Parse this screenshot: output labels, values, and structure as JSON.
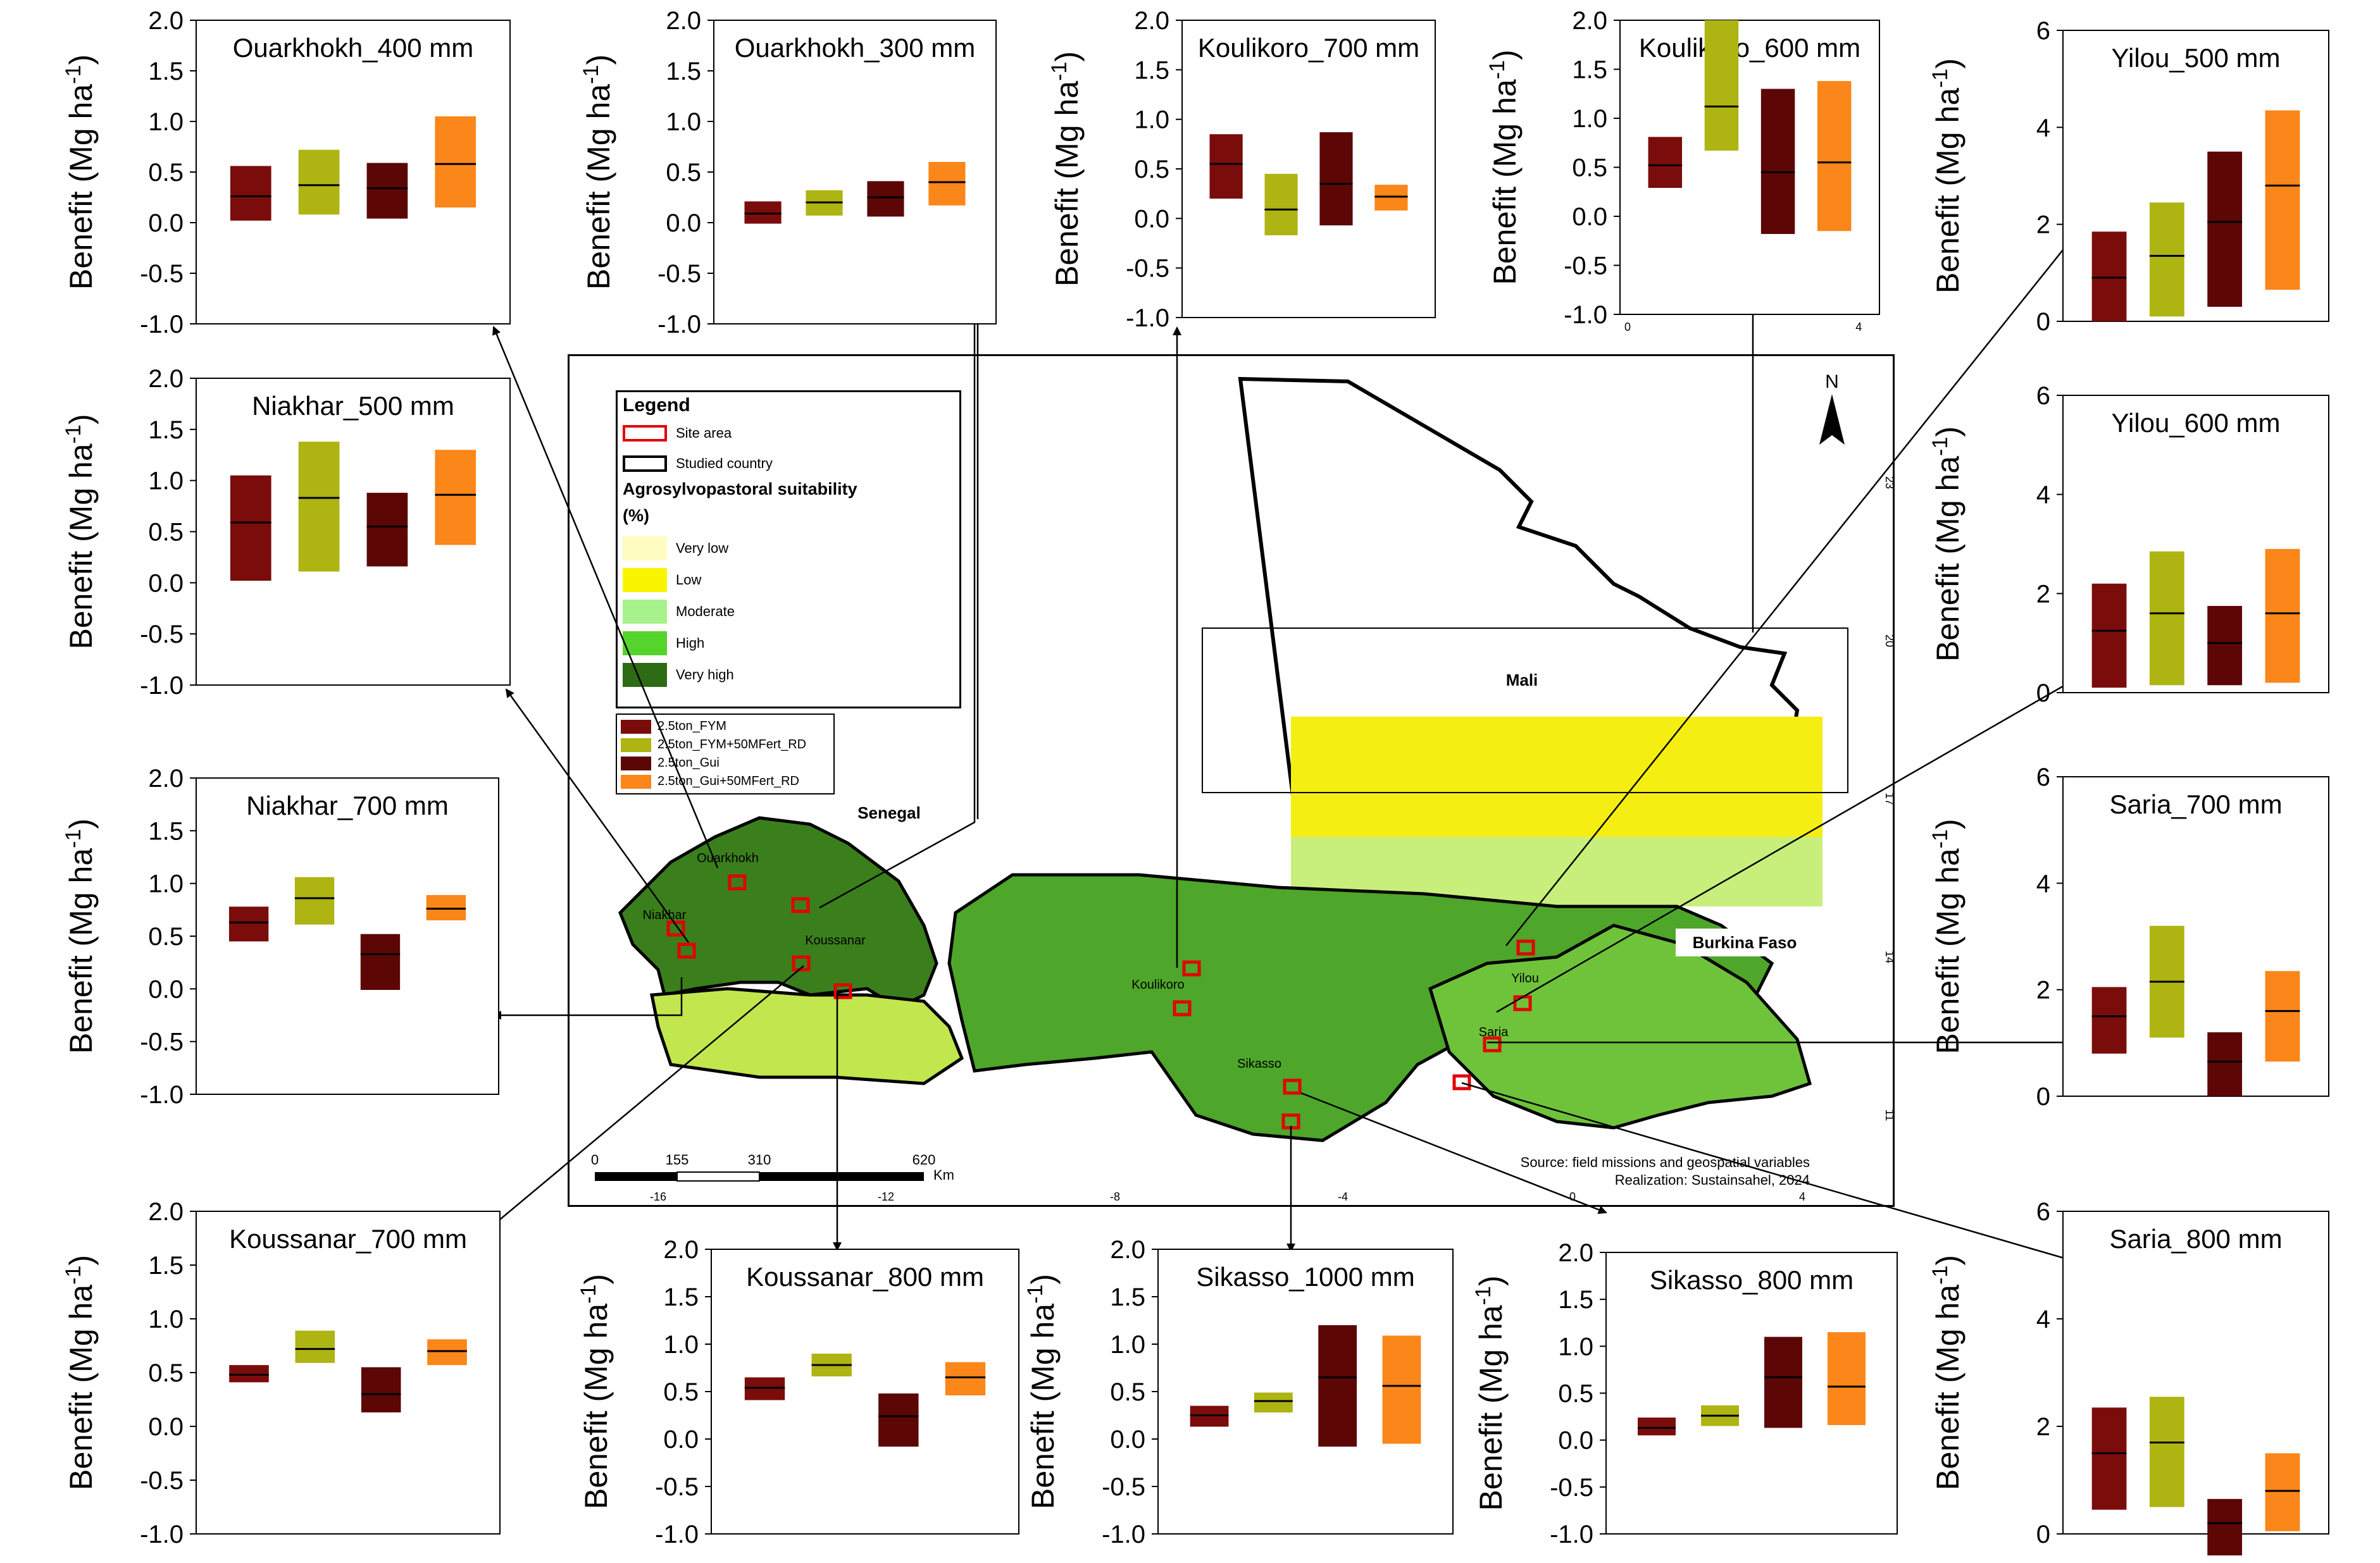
{
  "map": {
    "legend_title": "Legend",
    "legend_site": "Site area",
    "legend_country": "Studied country",
    "suitability_title": "Agrosylvopastoral suitability",
    "suitability_unit": "(%)",
    "classes": [
      {
        "label": "Very low",
        "color": "#fefcc0"
      },
      {
        "label": "Low",
        "color": "#f9f500"
      },
      {
        "label": "Moderate",
        "color": "#a7f28a"
      },
      {
        "label": "High",
        "color": "#55d42b"
      },
      {
        "label": "Very high",
        "color": "#2d6b14"
      }
    ],
    "countries": [
      "Senegal",
      "Mali",
      "Burkina Faso"
    ],
    "sites": [
      "Ouarkhokh",
      "Niakhar",
      "Koussanar",
      "Koulikoro",
      "Sikasso",
      "Yilou",
      "Saria"
    ],
    "north": "N",
    "scale_labels": [
      "0",
      "155",
      "310",
      "620"
    ],
    "scale_unit": "Km",
    "source": "Source: field missions and geospatial variables",
    "realization": "Realization: Sustainsahel, 2024",
    "lat_ticks": [
      "23",
      "20",
      "17",
      "14",
      "11"
    ],
    "lon_ticks_bottom": [
      "-16",
      "-12",
      "-8",
      "-4",
      "0",
      "4"
    ],
    "lon_ticks_top": [
      "0",
      "4"
    ]
  },
  "treatments": [
    {
      "label": "2.5ton_FYM",
      "color": "#7b0c0c"
    },
    {
      "label": "2.5ton_FYM+50MFert_RD",
      "color": "#aeb412"
    },
    {
      "label": "2.5ton_Gui",
      "color": "#5c0606"
    },
    {
      "label": "2.5ton_Gui+50MFert_RD",
      "color": "#fb8619"
    }
  ],
  "chart_data": [
    {
      "type": "box",
      "title": "Ouarkhokh_400 mm",
      "ylabel": "Benefit (Mg ha-1)",
      "ylim": [
        -1.0,
        2.0
      ],
      "yticks": [
        "2.0",
        "1.5",
        "1.0",
        "0.5",
        "0.0",
        "-0.5",
        "-1.0"
      ],
      "series": [
        {
          "low": 0.02,
          "median": 0.26,
          "high": 0.56
        },
        {
          "low": 0.08,
          "median": 0.37,
          "high": 0.72
        },
        {
          "low": 0.04,
          "median": 0.34,
          "high": 0.59
        },
        {
          "low": 0.15,
          "median": 0.58,
          "high": 1.05
        }
      ]
    },
    {
      "type": "box",
      "title": "Ouarkhokh_300 mm",
      "ylabel": "Benefit (Mg ha-1)",
      "ylim": [
        -1.0,
        2.0
      ],
      "yticks": [
        "2.0",
        "1.5",
        "1.0",
        "0.5",
        "0.0",
        "-0.5",
        "-1.0"
      ],
      "series": [
        {
          "low": -0.01,
          "median": 0.09,
          "high": 0.21
        },
        {
          "low": 0.07,
          "median": 0.2,
          "high": 0.32
        },
        {
          "low": 0.06,
          "median": 0.25,
          "high": 0.41
        },
        {
          "low": 0.17,
          "median": 0.4,
          "high": 0.6
        }
      ]
    },
    {
      "type": "box",
      "title": "Koulikoro_700 mm",
      "ylabel": "Benefit (Mg ha-1)",
      "ylim": [
        -1.0,
        2.0
      ],
      "yticks": [
        "2.0",
        "1.5",
        "1.0",
        "0.5",
        "0.0",
        "-0.5",
        "-1.0"
      ],
      "series": [
        {
          "low": 0.2,
          "median": 0.55,
          "high": 0.85
        },
        {
          "low": -0.17,
          "median": 0.09,
          "high": 0.45
        },
        {
          "low": -0.07,
          "median": 0.35,
          "high": 0.87
        },
        {
          "low": 0.08,
          "median": 0.22,
          "high": 0.34
        }
      ]
    },
    {
      "type": "box",
      "title": "Koulikoro_600 mm",
      "ylabel": "Benefit (Mg ha-1)",
      "ylim": [
        -1.0,
        2.0
      ],
      "yticks": [
        "2.0",
        "1.5",
        "1.0",
        "0.5",
        "0.0",
        "-0.5",
        "-1.0"
      ],
      "xticks": [
        "0",
        "4"
      ],
      "series": [
        {
          "low": 0.29,
          "median": 0.52,
          "high": 0.81
        },
        {
          "low": 0.67,
          "median": 1.12,
          "high": 2.0
        },
        {
          "low": -0.18,
          "median": 0.45,
          "high": 1.3
        },
        {
          "low": -0.15,
          "median": 0.55,
          "high": 1.38
        }
      ]
    },
    {
      "type": "box",
      "title": "Yilou_500 mm",
      "ylabel": "Benefit (Mg ha-1)",
      "ylim": [
        0,
        6
      ],
      "yticks": [
        "6",
        "4",
        "2",
        "0"
      ],
      "series": [
        {
          "low": 0.0,
          "median": 0.9,
          "high": 1.85
        },
        {
          "low": 0.1,
          "median": 1.35,
          "high": 2.45
        },
        {
          "low": 0.3,
          "median": 2.05,
          "high": 3.5
        },
        {
          "low": 0.65,
          "median": 2.8,
          "high": 4.35
        }
      ]
    },
    {
      "type": "box",
      "title": "Niakhar_500 mm",
      "ylabel": "Benefit (Mg ha-1)",
      "ylim": [
        -1.0,
        2.0
      ],
      "yticks": [
        "2.0",
        "1.5",
        "1.0",
        "0.5",
        "0.0",
        "-0.5",
        "-1.0"
      ],
      "series": [
        {
          "low": 0.02,
          "median": 0.59,
          "high": 1.05
        },
        {
          "low": 0.11,
          "median": 0.83,
          "high": 1.38
        },
        {
          "low": 0.16,
          "median": 0.55,
          "high": 0.88
        },
        {
          "low": 0.37,
          "median": 0.86,
          "high": 1.3
        }
      ]
    },
    {
      "type": "box",
      "title": "Yilou_600 mm",
      "ylabel": "Benefit (Mg ha-1)",
      "ylim": [
        0,
        6
      ],
      "yticks": [
        "6",
        "4",
        "2",
        "0"
      ],
      "series": [
        {
          "low": 0.1,
          "median": 1.25,
          "high": 2.2
        },
        {
          "low": 0.15,
          "median": 1.6,
          "high": 2.85
        },
        {
          "low": 0.15,
          "median": 1.0,
          "high": 1.75
        },
        {
          "low": 0.2,
          "median": 1.6,
          "high": 2.9
        }
      ]
    },
    {
      "type": "box",
      "title": "Niakhar_700 mm",
      "ylabel": "Benefit (Mg ha-1)",
      "ylim": [
        -1.0,
        2.0
      ],
      "yticks": [
        "2.0",
        "1.5",
        "1.0",
        "0.5",
        "0.0",
        "-0.5",
        "-1.0"
      ],
      "series": [
        {
          "low": 0.45,
          "median": 0.63,
          "high": 0.78
        },
        {
          "low": 0.61,
          "median": 0.86,
          "high": 1.06
        },
        {
          "low": -0.01,
          "median": 0.33,
          "high": 0.52
        },
        {
          "low": 0.65,
          "median": 0.76,
          "high": 0.89
        }
      ]
    },
    {
      "type": "box",
      "title": "Saria_700 mm",
      "ylabel": "Benefit (Mg ha-1)",
      "ylim": [
        0,
        6
      ],
      "yticks": [
        "6",
        "4",
        "2",
        "0"
      ],
      "series": [
        {
          "low": 0.8,
          "median": 1.5,
          "high": 2.05
        },
        {
          "low": 1.1,
          "median": 2.15,
          "high": 3.2
        },
        {
          "low": 0.0,
          "median": 0.65,
          "high": 1.2
        },
        {
          "low": 0.65,
          "median": 1.6,
          "high": 2.35
        }
      ]
    },
    {
      "type": "box",
      "title": "Koussanar_700 mm",
      "ylabel": "Benefit (Mg ha-1)",
      "ylim": [
        -1.0,
        2.0
      ],
      "yticks": [
        "2.0",
        "1.5",
        "1.0",
        "0.5",
        "0.0",
        "-0.5",
        "-1.0"
      ],
      "series": [
        {
          "low": 0.41,
          "median": 0.48,
          "high": 0.57
        },
        {
          "low": 0.59,
          "median": 0.72,
          "high": 0.89
        },
        {
          "low": 0.13,
          "median": 0.3,
          "high": 0.55
        },
        {
          "low": 0.57,
          "median": 0.7,
          "high": 0.81
        }
      ]
    },
    {
      "type": "box",
      "title": "Koussanar_800 mm",
      "ylabel": "Benefit (Mg ha-1)",
      "ylim": [
        -1.0,
        2.0
      ],
      "yticks": [
        "2.0",
        "1.5",
        "1.0",
        "0.5",
        "0.0",
        "-0.5",
        "-1.0"
      ],
      "series": [
        {
          "low": 0.41,
          "median": 0.54,
          "high": 0.65
        },
        {
          "low": 0.66,
          "median": 0.78,
          "high": 0.9
        },
        {
          "low": -0.08,
          "median": 0.24,
          "high": 0.48
        },
        {
          "low": 0.46,
          "median": 0.65,
          "high": 0.81
        }
      ]
    },
    {
      "type": "box",
      "title": "Sikasso_1000 mm",
      "ylabel": "Benefit (Mg ha-1)",
      "ylim": [
        -1.0,
        2.0
      ],
      "yticks": [
        "2.0",
        "1.5",
        "1.0",
        "0.5",
        "0.0",
        "-0.5",
        "-1.0"
      ],
      "series": [
        {
          "low": 0.13,
          "median": 0.25,
          "high": 0.35
        },
        {
          "low": 0.28,
          "median": 0.4,
          "high": 0.49
        },
        {
          "low": -0.08,
          "median": 0.65,
          "high": 1.2
        },
        {
          "low": -0.05,
          "median": 0.56,
          "high": 1.09
        }
      ]
    },
    {
      "type": "box",
      "title": "Sikasso_800 mm",
      "ylabel": "Benefit (Mg ha-1)",
      "ylim": [
        -1.0,
        2.0
      ],
      "yticks": [
        "2.0",
        "1.5",
        "1.0",
        "0.5",
        "0.0",
        "-0.5",
        "-1.0"
      ],
      "series": [
        {
          "low": 0.05,
          "median": 0.13,
          "high": 0.24
        },
        {
          "low": 0.15,
          "median": 0.26,
          "high": 0.37
        },
        {
          "low": 0.13,
          "median": 0.67,
          "high": 1.1
        },
        {
          "low": 0.16,
          "median": 0.57,
          "high": 1.15
        }
      ]
    },
    {
      "type": "box",
      "title": "Saria_800 mm",
      "ylabel": "Benefit (Mg ha-1)",
      "ylim": [
        0,
        6
      ],
      "yticks": [
        "6",
        "4",
        "2",
        "0"
      ],
      "series": [
        {
          "low": 0.45,
          "median": 1.5,
          "high": 2.35
        },
        {
          "low": 0.5,
          "median": 1.7,
          "high": 2.55
        },
        {
          "low": -0.4,
          "median": 0.2,
          "high": 0.65
        },
        {
          "low": 0.05,
          "median": 0.8,
          "high": 1.5
        }
      ]
    }
  ]
}
